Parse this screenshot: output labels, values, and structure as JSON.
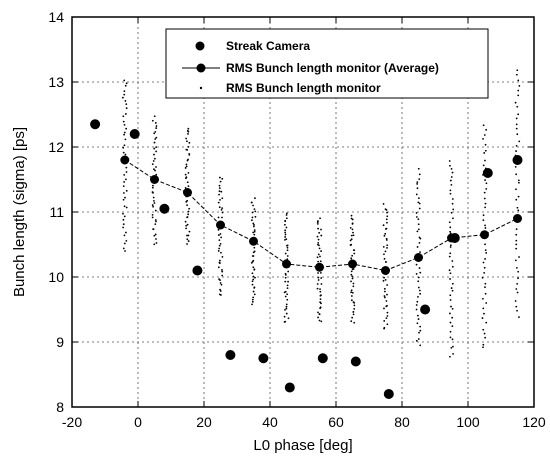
{
  "chart_data": {
    "type": "scatter",
    "title": "",
    "xlabel": "L0 phase [deg]",
    "ylabel": "Bunch length (sigma) [ps]",
    "xlim": [
      -20,
      120
    ],
    "ylim": [
      8,
      14
    ],
    "xticks": [
      -20,
      0,
      20,
      40,
      60,
      80,
      100,
      120
    ],
    "yticks": [
      8,
      9,
      10,
      11,
      12,
      13,
      14
    ],
    "grid": true,
    "legend_position": "top-right",
    "series": [
      {
        "name": "Streak Camera",
        "marker": "large-dot",
        "x": [
          -13,
          -1,
          8,
          18,
          28,
          38,
          46,
          56,
          66,
          76,
          87,
          96,
          106,
          115
        ],
        "y": [
          12.35,
          12.2,
          11.05,
          10.1,
          8.8,
          8.75,
          8.3,
          8.75,
          8.7,
          8.2,
          9.5,
          10.6,
          11.6,
          11.8
        ]
      },
      {
        "name": "RMS Bunch length monitor (Average)",
        "marker": "dot-line",
        "x": [
          -4,
          5,
          15,
          25,
          35,
          45,
          55,
          65,
          75,
          85,
          95,
          105,
          115
        ],
        "y": [
          11.8,
          11.5,
          11.3,
          10.8,
          10.55,
          10.2,
          10.15,
          10.2,
          10.1,
          10.3,
          10.6,
          10.65,
          10.9
        ]
      },
      {
        "name": "RMS Bunch length monitor",
        "marker": "small-dot",
        "clusters": [
          {
            "x": -4,
            "min": 10.4,
            "max": 13.05
          },
          {
            "x": 5,
            "min": 10.5,
            "max": 12.45
          },
          {
            "x": 15,
            "min": 10.5,
            "max": 12.3
          },
          {
            "x": 25,
            "min": 9.7,
            "max": 11.55
          },
          {
            "x": 35,
            "min": 9.6,
            "max": 11.2
          },
          {
            "x": 45,
            "min": 9.3,
            "max": 11.0
          },
          {
            "x": 55,
            "min": 9.3,
            "max": 10.9
          },
          {
            "x": 65,
            "min": 9.3,
            "max": 10.95
          },
          {
            "x": 75,
            "min": 9.2,
            "max": 11.1
          },
          {
            "x": 85,
            "min": 8.95,
            "max": 11.65
          },
          {
            "x": 95,
            "min": 8.75,
            "max": 11.8
          },
          {
            "x": 105,
            "min": 8.9,
            "max": 12.35
          },
          {
            "x": 115,
            "min": 9.4,
            "max": 13.2
          }
        ]
      }
    ]
  }
}
